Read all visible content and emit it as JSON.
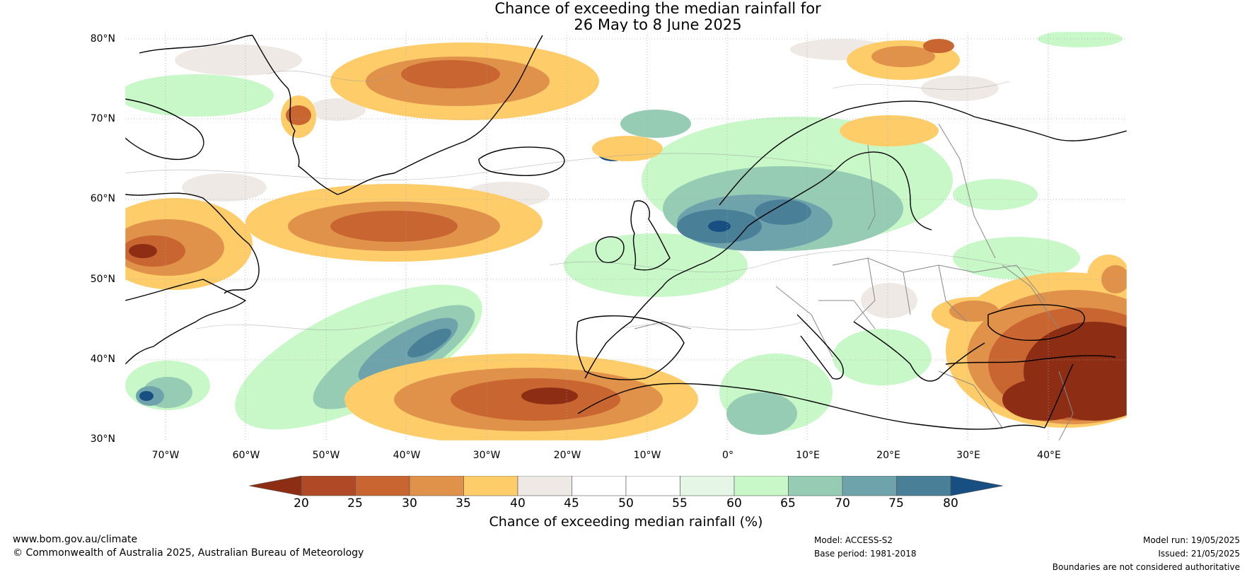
{
  "header": {
    "title_line1": "Chance of exceeding the median rainfall for",
    "title_line2": "26 May to 8 June 2025"
  },
  "map": {
    "lat_labels": [
      "80°N",
      "70°N",
      "60°N",
      "50°N",
      "40°N",
      "30°N"
    ],
    "lon_labels": [
      "70°W",
      "60°W",
      "50°W",
      "40°W",
      "30°W",
      "20°W",
      "10°W",
      "0°",
      "10°E",
      "20°E",
      "30°E",
      "40°E"
    ],
    "extent": {
      "lon_min": -75,
      "lon_max": 50,
      "lat_min": 30,
      "lat_max": 81
    },
    "colors": {
      "land_outline": "#000000",
      "borders": "#888888",
      "grid": "#aaaaaa"
    }
  },
  "colorbar": {
    "label": "Chance of exceeding median rainfall (%)",
    "ticks": [
      "20",
      "25",
      "30",
      "35",
      "40",
      "45",
      "50",
      "55",
      "60",
      "65",
      "70",
      "75",
      "80"
    ],
    "colors": [
      "#8c2d14",
      "#b04a26",
      "#c96530",
      "#e0914a",
      "#fecd6a",
      "#efe9e6",
      "#ffffff",
      "#ffffff",
      "#e6f6e6",
      "#c8f7c8",
      "#96ccb4",
      "#6fa3ab",
      "#4a7f98",
      "#184f82"
    ]
  },
  "footer": {
    "website": "www.bom.gov.au/climate",
    "copyright": "© Commonwealth of Australia 2025, Australian Bureau of Meteorology",
    "model": "Model: ACCESS-S2",
    "base_period": "Base period: 1981-2018",
    "model_run": "Model run: 19/05/2025",
    "issued": "Issued: 21/05/2025",
    "disclaimer": "Boundaries are not considered authoritative"
  }
}
